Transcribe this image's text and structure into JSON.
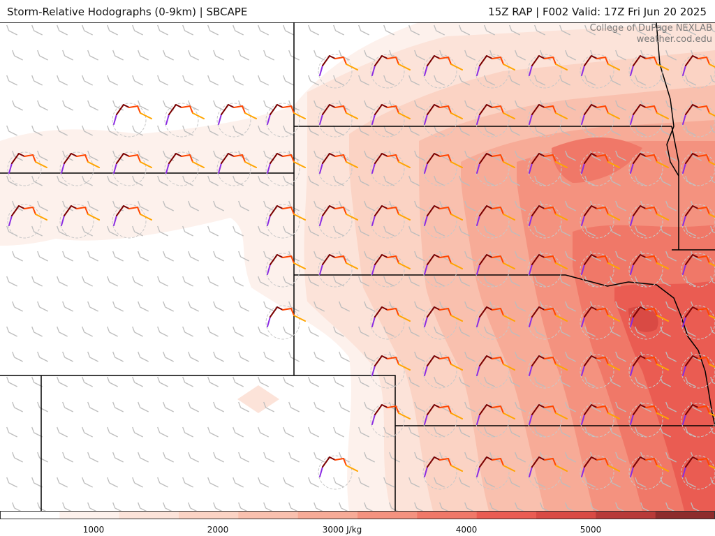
{
  "header": {
    "title_left": "Storm-Relative Hodographs (0-9km) | SBCAPE",
    "title_right": "15Z RAP | F002 Valid: 17Z Fri Jun 20 2025"
  },
  "credit": {
    "line1": "College of DuPage NEXLAB",
    "line2": "weather.cod.edu"
  },
  "colors": {
    "cape_scale": [
      "#ffffff",
      "#fdf1ec",
      "#fce3d9",
      "#fbd3c4",
      "#f9c0ae",
      "#f7ab97",
      "#f4927f",
      "#f07868",
      "#ea5c52",
      "#d94a44",
      "#b83a38",
      "#8e2c2c"
    ],
    "hodo_low": "#8a2be2",
    "hodo_mid_low": "#7a0000",
    "hodo_mid": "#ff4500",
    "hodo_high": "#ffa500",
    "borders": "#000000",
    "barbs": "#bdbdbd"
  },
  "colorbar": {
    "tick_labels": [
      {
        "value": 1000,
        "text": "1000"
      },
      {
        "value": 2000,
        "text": "2000"
      },
      {
        "value": 3000,
        "text": "3000 J/kg"
      },
      {
        "value": 4000,
        "text": "4000"
      },
      {
        "value": 5000,
        "text": "5000"
      }
    ],
    "min": 250,
    "max": 6000
  },
  "map": {
    "field": "SBCAPE",
    "field_units": "J/kg",
    "overlay": "storm-relative hodographs 0-9km",
    "icon_names": [
      "wind-barb-icon",
      "hodograph-icon",
      "range-ring-icon"
    ]
  }
}
